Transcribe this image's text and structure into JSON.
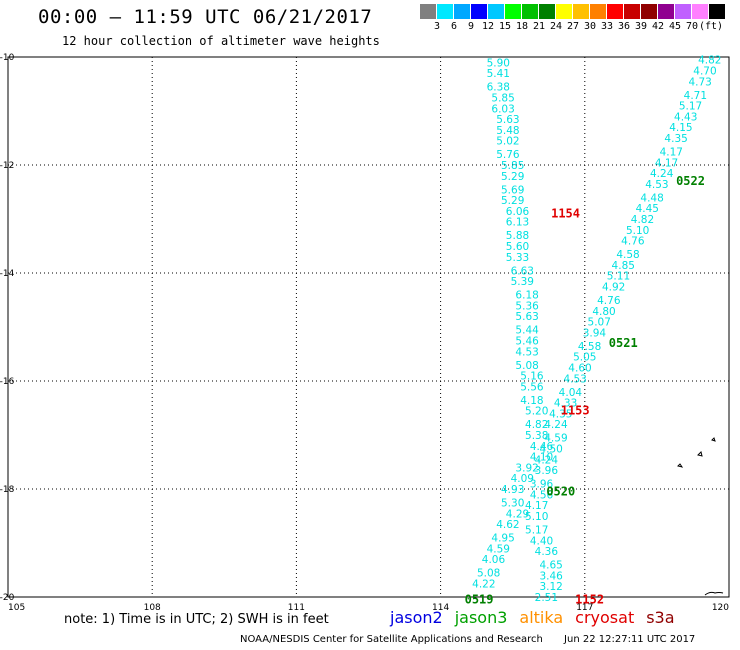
{
  "header": {
    "title": "00:00 – 11:59 UTC 06/21/2017",
    "subtitle": "12 hour collection of altimeter wave heights"
  },
  "scale": {
    "colors": [
      "#808080",
      "#00e8ff",
      "#00a8ff",
      "#0000ff",
      "#00c8ff",
      "#00ff00",
      "#00c000",
      "#008000",
      "#ffff00",
      "#ffc000",
      "#ff8000",
      "#ff0000",
      "#c80000",
      "#900000",
      "#900090",
      "#c060ff",
      "#ff80ff",
      "#000000"
    ],
    "labels": [
      "3",
      "6",
      "9",
      "12",
      "15",
      "18",
      "21",
      "24",
      "27",
      "30",
      "33",
      "36",
      "39",
      "42",
      "45",
      "70",
      "(ft)"
    ]
  },
  "map": {
    "lon_range": [
      105,
      120
    ],
    "lat_range": [
      -20,
      -10
    ],
    "lon_ticks": [
      "105",
      "108",
      "111",
      "114",
      "117",
      "120"
    ],
    "lat_ticks": [
      "-10",
      "-12",
      "-14",
      "-16",
      "-18",
      "-20"
    ],
    "track_west": {
      "points": [
        [
          115.2,
          -10.1,
          "5.90"
        ],
        [
          115.2,
          -10.3,
          "5.41"
        ],
        [
          115.2,
          -10.55,
          "6.38"
        ],
        [
          115.3,
          -10.75,
          "5.85"
        ],
        [
          115.3,
          -10.95,
          "6.03"
        ],
        [
          115.4,
          -11.15,
          "5.63"
        ],
        [
          115.4,
          -11.35,
          "5.48"
        ],
        [
          115.4,
          -11.55,
          "5.02"
        ],
        [
          115.4,
          -11.8,
          "5.76"
        ],
        [
          115.5,
          -12.0,
          "5.85"
        ],
        [
          115.5,
          -12.2,
          "5.29"
        ],
        [
          115.5,
          -12.45,
          "5.69"
        ],
        [
          115.5,
          -12.65,
          "5.29"
        ],
        [
          115.6,
          -12.85,
          "6.06"
        ],
        [
          115.6,
          -13.05,
          "6.13"
        ],
        [
          115.6,
          -13.3,
          "5.88"
        ],
        [
          115.6,
          -13.5,
          "5.60"
        ],
        [
          115.6,
          -13.7,
          "5.33"
        ],
        [
          115.7,
          -13.95,
          "6.63"
        ],
        [
          115.7,
          -14.15,
          "5.39"
        ],
        [
          115.8,
          -14.4,
          "6.18"
        ],
        [
          115.8,
          -14.6,
          "5.36"
        ],
        [
          115.8,
          -14.8,
          "5.63"
        ],
        [
          115.8,
          -15.05,
          "5.44"
        ],
        [
          115.8,
          -15.25,
          "5.46"
        ],
        [
          115.8,
          -15.45,
          "4.53"
        ],
        [
          115.8,
          -15.7,
          "5.08"
        ],
        [
          115.9,
          -15.9,
          "5.16"
        ],
        [
          115.9,
          -16.1,
          "5.56"
        ],
        [
          115.9,
          -16.35,
          "4.18"
        ],
        [
          116.0,
          -16.55,
          "5.20"
        ],
        [
          116.0,
          -16.8,
          "4.82"
        ],
        [
          116.0,
          -17.0,
          "5.38"
        ],
        [
          116.1,
          -17.2,
          "4.46"
        ],
        [
          116.1,
          -17.4,
          "4.10"
        ],
        [
          115.8,
          -17.6,
          "3.92"
        ],
        [
          115.7,
          -17.8,
          "4.09"
        ],
        [
          115.5,
          -18.0,
          "4.93"
        ],
        [
          115.5,
          -18.25,
          "5.30"
        ],
        [
          115.6,
          -18.45,
          "4.29"
        ],
        [
          115.4,
          -18.65,
          "4.62"
        ],
        [
          115.3,
          -18.9,
          "4.95"
        ],
        [
          115.2,
          -19.1,
          "4.59"
        ],
        [
          115.1,
          -19.3,
          "4.06"
        ],
        [
          115.0,
          -19.55,
          "5.08"
        ],
        [
          114.9,
          -19.75,
          "4.22"
        ]
      ]
    },
    "track_east": {
      "points": [
        [
          119.6,
          -10.05,
          "4.82"
        ],
        [
          119.5,
          -10.25,
          "4.70"
        ],
        [
          119.4,
          -10.45,
          "4.73"
        ],
        [
          119.3,
          -10.7,
          "4.71"
        ],
        [
          119.2,
          -10.9,
          "5.17"
        ],
        [
          119.1,
          -11.1,
          "4.43"
        ],
        [
          119.0,
          -11.3,
          "4.15"
        ],
        [
          118.9,
          -11.5,
          "4.35"
        ],
        [
          118.8,
          -11.75,
          "4.17"
        ],
        [
          118.7,
          -11.95,
          "4.17"
        ],
        [
          118.6,
          -12.15,
          "4.24"
        ],
        [
          118.5,
          -12.35,
          "4.53"
        ],
        [
          118.4,
          -12.6,
          "4.48"
        ],
        [
          118.3,
          -12.8,
          "4.45"
        ],
        [
          118.2,
          -13.0,
          "4.82"
        ],
        [
          118.1,
          -13.2,
          "5.10"
        ],
        [
          118.0,
          -13.4,
          "4.76"
        ],
        [
          117.9,
          -13.65,
          "4.58"
        ],
        [
          117.8,
          -13.85,
          "4.85"
        ],
        [
          117.7,
          -14.05,
          "5.11"
        ],
        [
          117.6,
          -14.25,
          "4.92"
        ],
        [
          117.5,
          -14.5,
          "4.76"
        ],
        [
          117.4,
          -14.7,
          "4.80"
        ],
        [
          117.3,
          -14.9,
          "5.07"
        ],
        [
          117.2,
          -15.1,
          "3.94"
        ],
        [
          117.1,
          -15.35,
          "4.58"
        ],
        [
          117.0,
          -15.55,
          "5.05"
        ],
        [
          116.9,
          -15.75,
          "4.60"
        ],
        [
          116.8,
          -15.95,
          "4.53"
        ],
        [
          116.7,
          -16.2,
          "4.04"
        ],
        [
          116.6,
          -16.4,
          "4.33"
        ],
        [
          116.5,
          -16.6,
          "4.35"
        ],
        [
          116.4,
          -16.8,
          "4.24"
        ],
        [
          116.4,
          -17.05,
          "4.59"
        ],
        [
          116.3,
          -17.25,
          "4.50"
        ],
        [
          116.2,
          -17.45,
          "4.24"
        ],
        [
          116.2,
          -17.65,
          "3.96"
        ],
        [
          116.1,
          -17.9,
          "3.96"
        ],
        [
          116.1,
          -18.1,
          "4.56"
        ],
        [
          116.0,
          -18.3,
          "4.17"
        ],
        [
          116.0,
          -18.5,
          "5.10"
        ],
        [
          116.0,
          -18.75,
          "5.17"
        ],
        [
          116.1,
          -18.95,
          "4.40"
        ],
        [
          116.2,
          -19.15,
          "4.36"
        ],
        [
          116.3,
          -19.4,
          "4.65"
        ],
        [
          116.3,
          -19.6,
          "3.46"
        ],
        [
          116.3,
          -19.8,
          "3.12"
        ],
        [
          116.2,
          -20.0,
          "2.51"
        ]
      ]
    },
    "times": [
      {
        "label": "1154",
        "lon": 116.6,
        "lat": -12.9,
        "color": "#e00000"
      },
      {
        "label": "0522",
        "lon": 119.2,
        "lat": -12.3,
        "color": "#008000"
      },
      {
        "label": "0521",
        "lon": 117.8,
        "lat": -15.3,
        "color": "#008000"
      },
      {
        "label": "1153",
        "lon": 116.8,
        "lat": -16.55,
        "color": "#e00000"
      },
      {
        "label": "0520",
        "lon": 116.5,
        "lat": -18.05,
        "color": "#008000"
      },
      {
        "label": "0519",
        "lon": 114.8,
        "lat": -20.05,
        "color": "#008000"
      },
      {
        "label": "1152",
        "lon": 117.1,
        "lat": -20.05,
        "color": "#e00000"
      }
    ]
  },
  "footer": {
    "note": "note: 1) Time is in UTC; 2) SWH is in feet",
    "satellites": [
      {
        "name": "jason2",
        "color": "#0000e0"
      },
      {
        "name": "jason3",
        "color": "#00a000"
      },
      {
        "name": "altika",
        "color": "#ff9000"
      },
      {
        "name": "cryosat",
        "color": "#e00000"
      },
      {
        "name": "s3a",
        "color": "#900000"
      }
    ],
    "credit": "NOAA/NESDIS Center for Satellite Applications and Research",
    "timestamp": "Jun 22 12:27:11 UTC 2017"
  }
}
